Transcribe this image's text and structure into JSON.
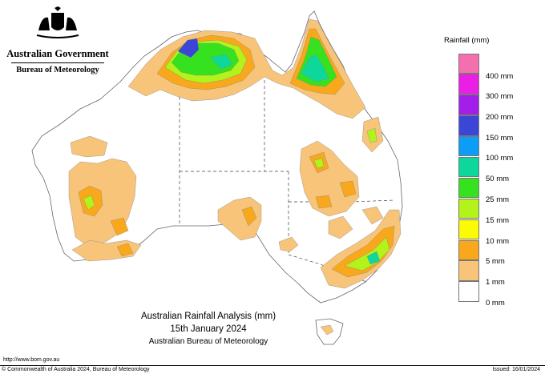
{
  "header": {
    "government": "Australian Government",
    "bureau": "Bureau of Meteorology"
  },
  "legend": {
    "title": "Rainfall (mm)",
    "bins": [
      {
        "label": "400 mm",
        "color": "#f46fb0"
      },
      {
        "label": "300 mm",
        "color": "#ea1ee4"
      },
      {
        "label": "200 mm",
        "color": "#a31eea"
      },
      {
        "label": "150 mm",
        "color": "#3c46d6"
      },
      {
        "label": "100 mm",
        "color": "#0c9ef6"
      },
      {
        "label": "50 mm",
        "color": "#0ed79c"
      },
      {
        "label": "25 mm",
        "color": "#36e21e"
      },
      {
        "label": "15 mm",
        "color": "#b4f31a"
      },
      {
        "label": "10 mm",
        "color": "#fbfb04"
      },
      {
        "label": "5 mm",
        "color": "#f8a81a"
      },
      {
        "label": "1 mm",
        "color": "#f7c47a"
      },
      {
        "label": "0 mm",
        "color": "#ffffff"
      }
    ]
  },
  "caption": {
    "title": "Australian Rainfall Analysis (mm)",
    "date": "15th January 2024",
    "source": "Australian Bureau of Meteorology"
  },
  "footer": {
    "url": "http://www.bom.gov.au",
    "copyright": "© Commonwealth of Australia 2024, Bureau of Meteorology",
    "issued": "Issued: 16/01/2024"
  }
}
